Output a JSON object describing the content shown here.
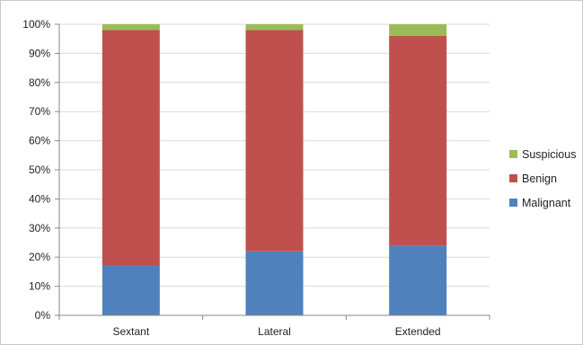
{
  "chart_data": {
    "type": "bar",
    "stacked": true,
    "percent": true,
    "categories": [
      "Sextant",
      "Lateral",
      "Extended"
    ],
    "series": [
      {
        "name": "Malignant",
        "color": "#4f81bd",
        "values": [
          17,
          22,
          24
        ]
      },
      {
        "name": "Benign",
        "color": "#c0504d",
        "values": [
          81,
          76,
          72
        ]
      },
      {
        "name": "Suspicious",
        "color": "#9bbb59",
        "values": [
          2,
          2,
          4
        ]
      }
    ],
    "title": "",
    "xlabel": "",
    "ylabel": "",
    "ylim": [
      0,
      100
    ],
    "yticks": [
      "0%",
      "10%",
      "20%",
      "30%",
      "40%",
      "50%",
      "60%",
      "70%",
      "80%",
      "90%",
      "100%"
    ],
    "grid": true,
    "legend": "right",
    "legend_order": [
      "Suspicious",
      "Benign",
      "Malignant"
    ]
  }
}
